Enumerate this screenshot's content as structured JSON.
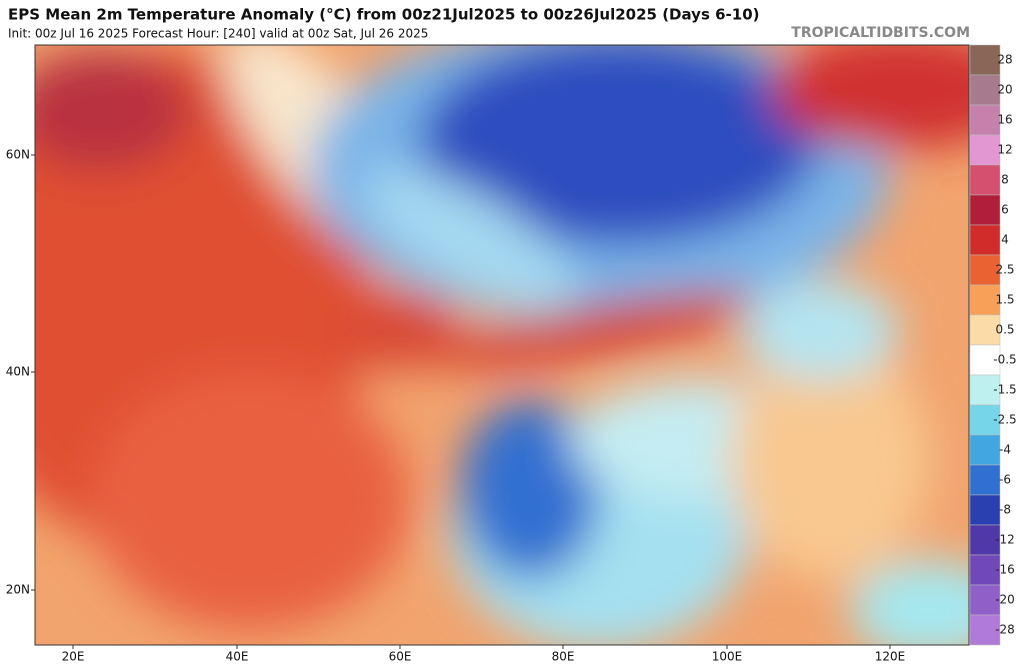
{
  "title": "EPS Mean 2m Temperature Anomaly (°C) from 00z21Jul2025 to 00z26Jul2025 (Days 6-10)",
  "subtitle": "Init: 00z Jul 16 2025   Forecast Hour: [240]   valid at 00z Sat, Jul 26 2025",
  "watermark": "TROPICALTIDBITS.COM",
  "lat_labels": [
    "60N",
    "40N",
    "20N"
  ],
  "lon_labels": [
    "20E",
    "40E",
    "60E",
    "80E",
    "100E",
    "120E"
  ],
  "colorbar": {
    "levels": [
      28,
      20,
      16,
      12,
      8,
      6,
      4,
      2.5,
      1.5,
      0.5,
      -0.5,
      -1.5,
      -2.5,
      -4,
      -6,
      -8,
      -12,
      -16,
      -20,
      -28
    ],
    "colors": [
      "#8a6656",
      "#a87a8e",
      "#c680ac",
      "#e296d2",
      "#d4506e",
      "#b01e3a",
      "#d22c2a",
      "#ea6232",
      "#f8a058",
      "#fcdca6",
      "#ffffff",
      "#bff0f0",
      "#74d6e8",
      "#42a6e0",
      "#3070d0",
      "#2a40b0",
      "#5038a8",
      "#7048b8",
      "#9060c8",
      "#b07ad8"
    ]
  }
}
